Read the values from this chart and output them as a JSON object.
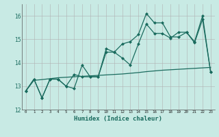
{
  "title": "",
  "xlabel": "Humidex (Indice chaleur)",
  "ylabel": "",
  "bg_color": "#c8eae4",
  "grid_color": "#b0b0b0",
  "line_color": "#1a6b5e",
  "xlim": [
    -0.5,
    23.5
  ],
  "ylim": [
    12,
    16.5
  ],
  "yticks": [
    12,
    13,
    14,
    15,
    16
  ],
  "xticks": [
    0,
    1,
    2,
    3,
    4,
    5,
    6,
    7,
    8,
    9,
    10,
    11,
    12,
    13,
    14,
    15,
    16,
    17,
    18,
    19,
    20,
    21,
    22,
    23
  ],
  "line1_x": [
    0,
    1,
    2,
    3,
    4,
    5,
    6,
    7,
    8,
    9,
    10,
    11,
    12,
    13,
    14,
    15,
    16,
    17,
    18,
    19,
    20,
    21,
    22,
    23
  ],
  "line1_y": [
    12.8,
    13.3,
    12.5,
    13.3,
    13.3,
    13.0,
    12.9,
    13.9,
    13.4,
    13.4,
    14.6,
    14.45,
    14.8,
    14.9,
    15.2,
    16.1,
    15.7,
    15.7,
    15.1,
    15.1,
    15.3,
    14.9,
    16.0,
    13.6
  ],
  "line2_x": [
    0,
    1,
    2,
    3,
    4,
    5,
    6,
    7,
    8,
    9,
    10,
    11,
    12,
    13,
    14,
    15,
    16,
    17,
    18,
    19,
    20,
    21,
    22,
    23
  ],
  "line2_y": [
    12.8,
    13.3,
    12.5,
    13.3,
    13.3,
    13.0,
    13.5,
    13.4,
    13.4,
    13.4,
    14.45,
    14.45,
    14.2,
    13.9,
    14.8,
    15.65,
    15.25,
    15.25,
    15.05,
    15.3,
    15.3,
    14.85,
    15.85,
    13.6
  ],
  "line3_x": [
    0,
    1,
    2,
    3,
    4,
    5,
    6,
    7,
    8,
    9,
    10,
    11,
    12,
    13,
    14,
    15,
    16,
    17,
    18,
    19,
    20,
    21,
    22,
    23
  ],
  "line3_y": [
    12.8,
    13.25,
    13.28,
    13.32,
    13.36,
    13.38,
    13.4,
    13.42,
    13.44,
    13.46,
    13.48,
    13.5,
    13.52,
    13.55,
    13.58,
    13.62,
    13.65,
    13.68,
    13.7,
    13.72,
    13.74,
    13.76,
    13.78,
    13.8
  ],
  "marker": "D",
  "markersize": 2.5,
  "linewidth": 0.9
}
